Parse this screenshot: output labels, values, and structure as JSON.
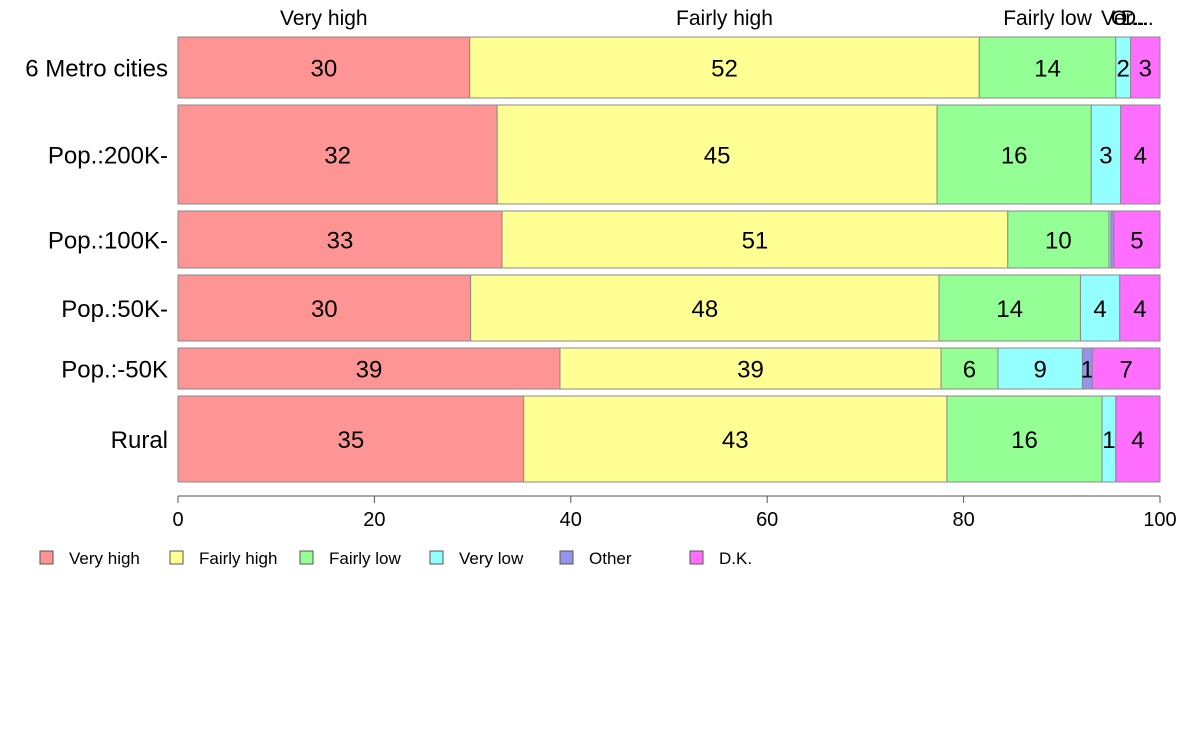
{
  "chart_data": {
    "type": "bar",
    "orientation": "horizontal",
    "stacked": true,
    "title": "",
    "xlabel": "",
    "ylabel": "",
    "xlim": [
      0,
      100
    ],
    "x_ticks": [
      "0",
      "20",
      "40",
      "60",
      "80",
      "100"
    ],
    "grid": false,
    "legend_position": "bottom",
    "categories": [
      "6 Metro cities",
      "Pop.:200K-",
      "Pop.:100K-",
      "Pop.:50K-",
      "Pop.:-50K",
      "Rural"
    ],
    "top_labels": [
      "Very high",
      "Fairly high",
      "Fairly low",
      "Ver...",
      "O...",
      "D..."
    ],
    "series": [
      {
        "name": "Very high",
        "color": "#ff9494",
        "values": [
          29.7,
          32.5,
          33.0,
          29.8,
          38.9,
          35.2
        ],
        "labels": [
          "30",
          "32",
          "33",
          "30",
          "39",
          "35"
        ]
      },
      {
        "name": "Fairly high",
        "color": "#ffff94",
        "values": [
          51.9,
          44.8,
          51.5,
          47.7,
          38.8,
          43.1
        ],
        "labels": [
          "52",
          "45",
          "51",
          "48",
          "39",
          "43"
        ]
      },
      {
        "name": "Fairly low",
        "color": "#94ff94",
        "values": [
          13.9,
          15.7,
          10.3,
          14.4,
          5.8,
          15.8
        ],
        "labels": [
          "14",
          "16",
          "10",
          "14",
          "6",
          "16"
        ]
      },
      {
        "name": "Very low",
        "color": "#94ffff",
        "values": [
          1.5,
          3.0,
          0.2,
          4.0,
          8.6,
          1.4
        ],
        "labels": [
          "2",
          "3",
          "",
          "4",
          "9",
          "1"
        ]
      },
      {
        "name": "Other",
        "color": "#9494ee",
        "values": [
          0.0,
          0.0,
          0.3,
          0.0,
          1.0,
          0.0
        ],
        "labels": [
          "",
          "",
          "",
          "",
          "1",
          ""
        ]
      },
      {
        "name": "D.K.",
        "color": "#ff6eff",
        "values": [
          3.0,
          4.0,
          4.7,
          4.1,
          6.9,
          4.5
        ],
        "labels": [
          "3",
          "4",
          "5",
          "4",
          "7",
          "4"
        ]
      }
    ]
  }
}
